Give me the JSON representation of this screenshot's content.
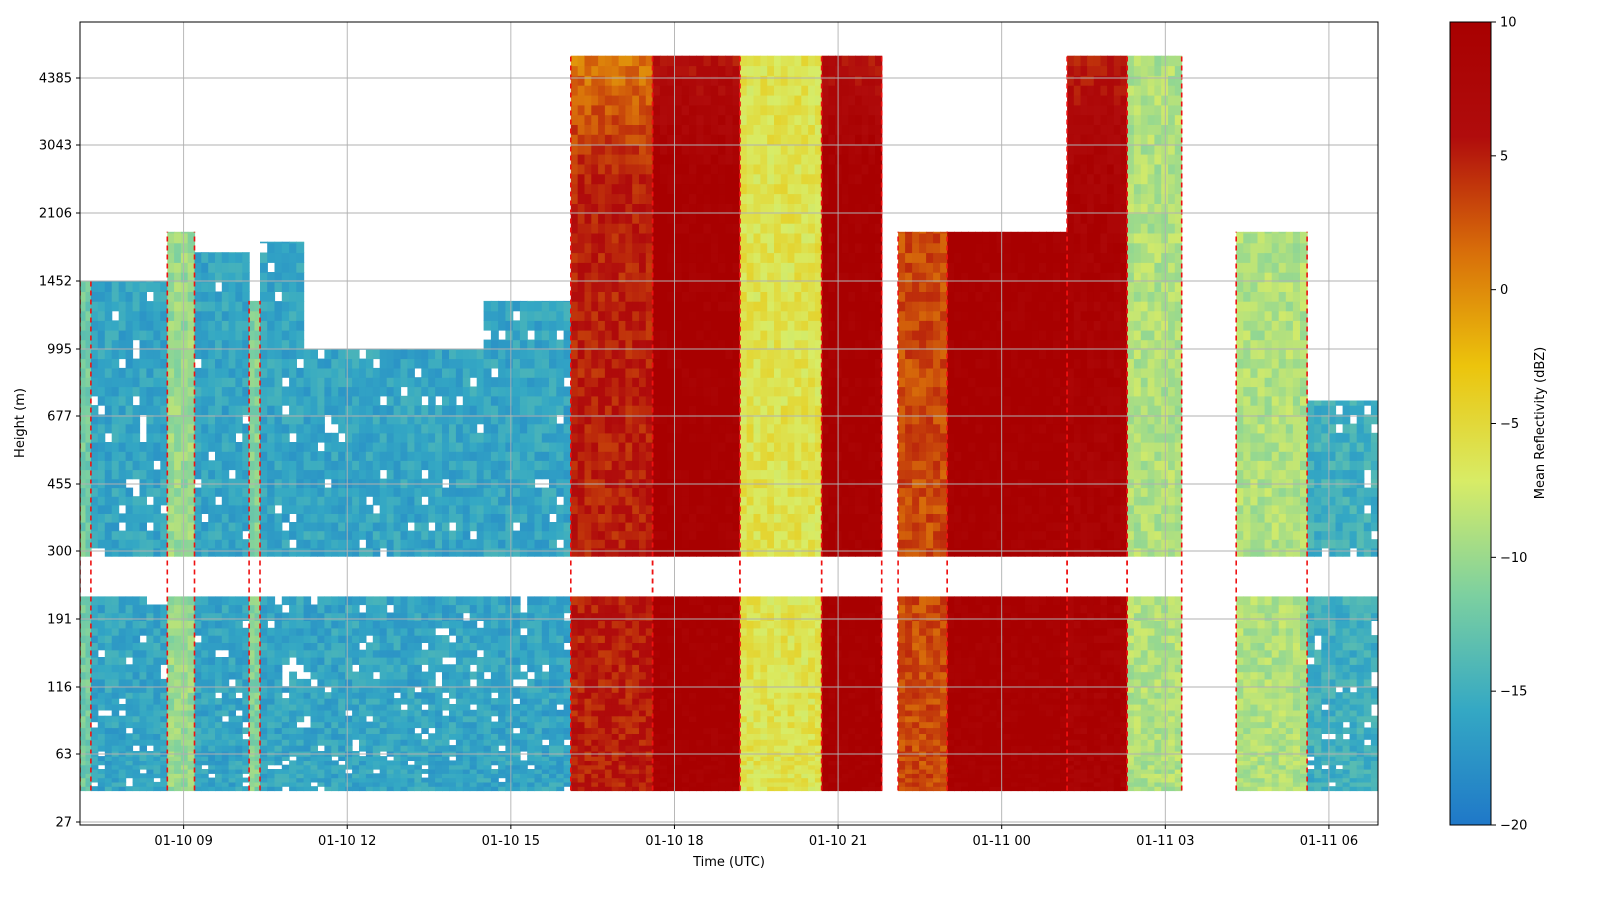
{
  "chart_data": {
    "type": "heatmap",
    "xlabel": "Time (UTC)",
    "ylabel": "Height (m)",
    "x_ticks": [
      "01-10 09",
      "01-10 12",
      "01-10 15",
      "01-10 18",
      "01-10 21",
      "01-11 00",
      "01-11 03",
      "01-11 06"
    ],
    "x_tick_hours": [
      9,
      12,
      15,
      18,
      21,
      24,
      27,
      30
    ],
    "x_range_hours": [
      7.1,
      30.9
    ],
    "y_ticks": [
      "27",
      "63",
      "116",
      "191",
      "300",
      "455",
      "677",
      "995",
      "1452",
      "2106",
      "3043",
      "4385"
    ],
    "colorbar": {
      "label": "Mean Reflectivity (dBZ)",
      "range": [
        -20,
        10
      ],
      "ticks": [
        "10",
        "5",
        "0",
        "−5",
        "−10",
        "−15",
        "−20"
      ],
      "colors": [
        "#1f78c8",
        "#34a8c4",
        "#7cd0a0",
        "#d8ec66",
        "#ecc40c",
        "#d86e0a",
        "#b00c0c",
        "#a80000"
      ]
    },
    "grid": true,
    "contour": {
      "style": "dashed",
      "color": "#ee1111"
    },
    "gap_band_between": [
      "191",
      "300"
    ],
    "columns": [
      {
        "from": 7.1,
        "to": 7.3,
        "top": 1452,
        "value": -12
      },
      {
        "from": 7.3,
        "to": 8.7,
        "top": 1452,
        "value": -16
      },
      {
        "from": 8.7,
        "to": 9.2,
        "top": 1900,
        "value": -10
      },
      {
        "from": 9.2,
        "to": 10.2,
        "top": 1700,
        "value": -16
      },
      {
        "from": 10.2,
        "to": 10.4,
        "top": 1300,
        "value": -11
      },
      {
        "from": 10.4,
        "to": 11.2,
        "top": 1800,
        "value": -16
      },
      {
        "from": 11.2,
        "to": 14.5,
        "top": 995,
        "value": -16
      },
      {
        "from": 14.5,
        "to": 16.1,
        "top": 1300,
        "value": -16
      },
      {
        "from": 16.1,
        "to": 17.6,
        "top": 5000,
        "value": 5
      },
      {
        "from": 17.6,
        "to": 19.2,
        "top": 5000,
        "value": 10
      },
      {
        "from": 19.2,
        "to": 20.7,
        "top": 5000,
        "value": -6
      },
      {
        "from": 20.7,
        "to": 21.8,
        "top": 5000,
        "value": 10
      },
      {
        "from": 22.1,
        "to": 23.0,
        "top": 1900,
        "value": 3
      },
      {
        "from": 23.0,
        "to": 25.2,
        "top": 1900,
        "value": 10
      },
      {
        "from": 25.2,
        "to": 26.3,
        "top": 5000,
        "value": 9
      },
      {
        "from": 26.3,
        "to": 27.3,
        "top": 5000,
        "value": -9
      },
      {
        "from": 28.3,
        "to": 29.6,
        "top": 1900,
        "value": -9
      },
      {
        "from": 29.6,
        "to": 30.9,
        "top": 740,
        "value": -15
      }
    ]
  }
}
